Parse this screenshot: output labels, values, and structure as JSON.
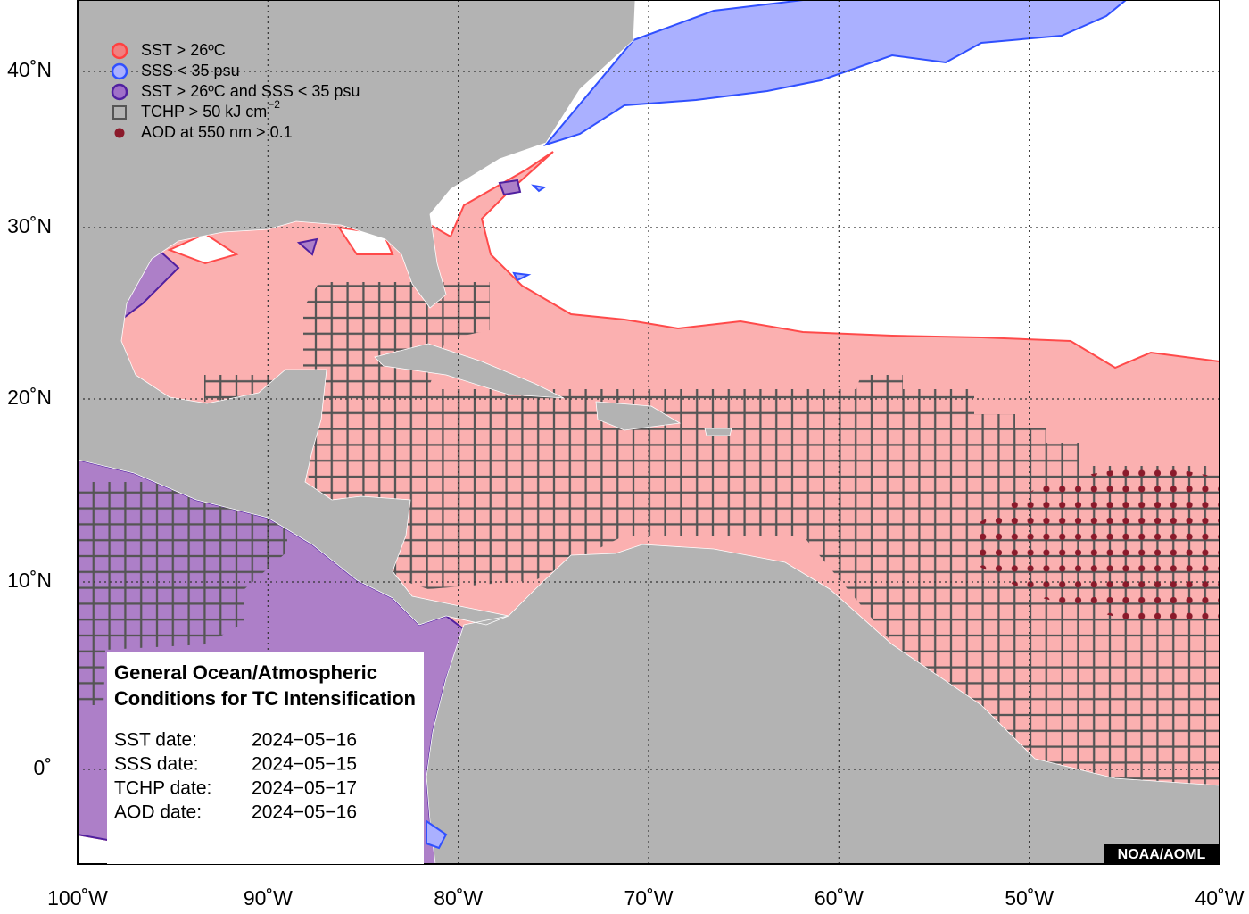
{
  "legend": {
    "items": [
      {
        "label": "SST > 26ºC",
        "color": "#f08080",
        "edge": "#ff4040",
        "marker": "circle"
      },
      {
        "label": "SSS < 35 psu",
        "color": "#aab0ff",
        "edge": "#3050ff",
        "marker": "circle"
      },
      {
        "label": "SST > 26ºC and SSS < 35 psu",
        "color": "#a070c8",
        "edge": "#5020a0",
        "marker": "circle"
      },
      {
        "label": "TCHP > 50 kJ cm",
        "superscript": "−2",
        "color": "none",
        "edge": "#555555",
        "marker": "square"
      },
      {
        "label": "AOD at 550 nm > 0.1",
        "color": "#8b1a2b",
        "edge": "#8b1a2b",
        "marker": "dot"
      }
    ]
  },
  "axes": {
    "x_labels": [
      "100˚W",
      "90˚W",
      "80˚W",
      "70˚W",
      "60˚W",
      "50˚W",
      "40˚W"
    ],
    "y_labels": [
      "40˚N",
      "30˚N",
      "20˚N",
      "10˚N",
      "0˚"
    ]
  },
  "info_box": {
    "title_lines": [
      "General Ocean/Atmospheric",
      "Conditions for TC Intensification"
    ],
    "dates": [
      {
        "label": "SST date:",
        "value": "2024−05−16"
      },
      {
        "label": "SSS date:",
        "value": "2024−05−15"
      },
      {
        "label": "TCHP date:",
        "value": "2024−05−17"
      },
      {
        "label": "AOD date:",
        "value": "2024−05−16"
      }
    ]
  },
  "credit": "NOAA/AOML"
}
